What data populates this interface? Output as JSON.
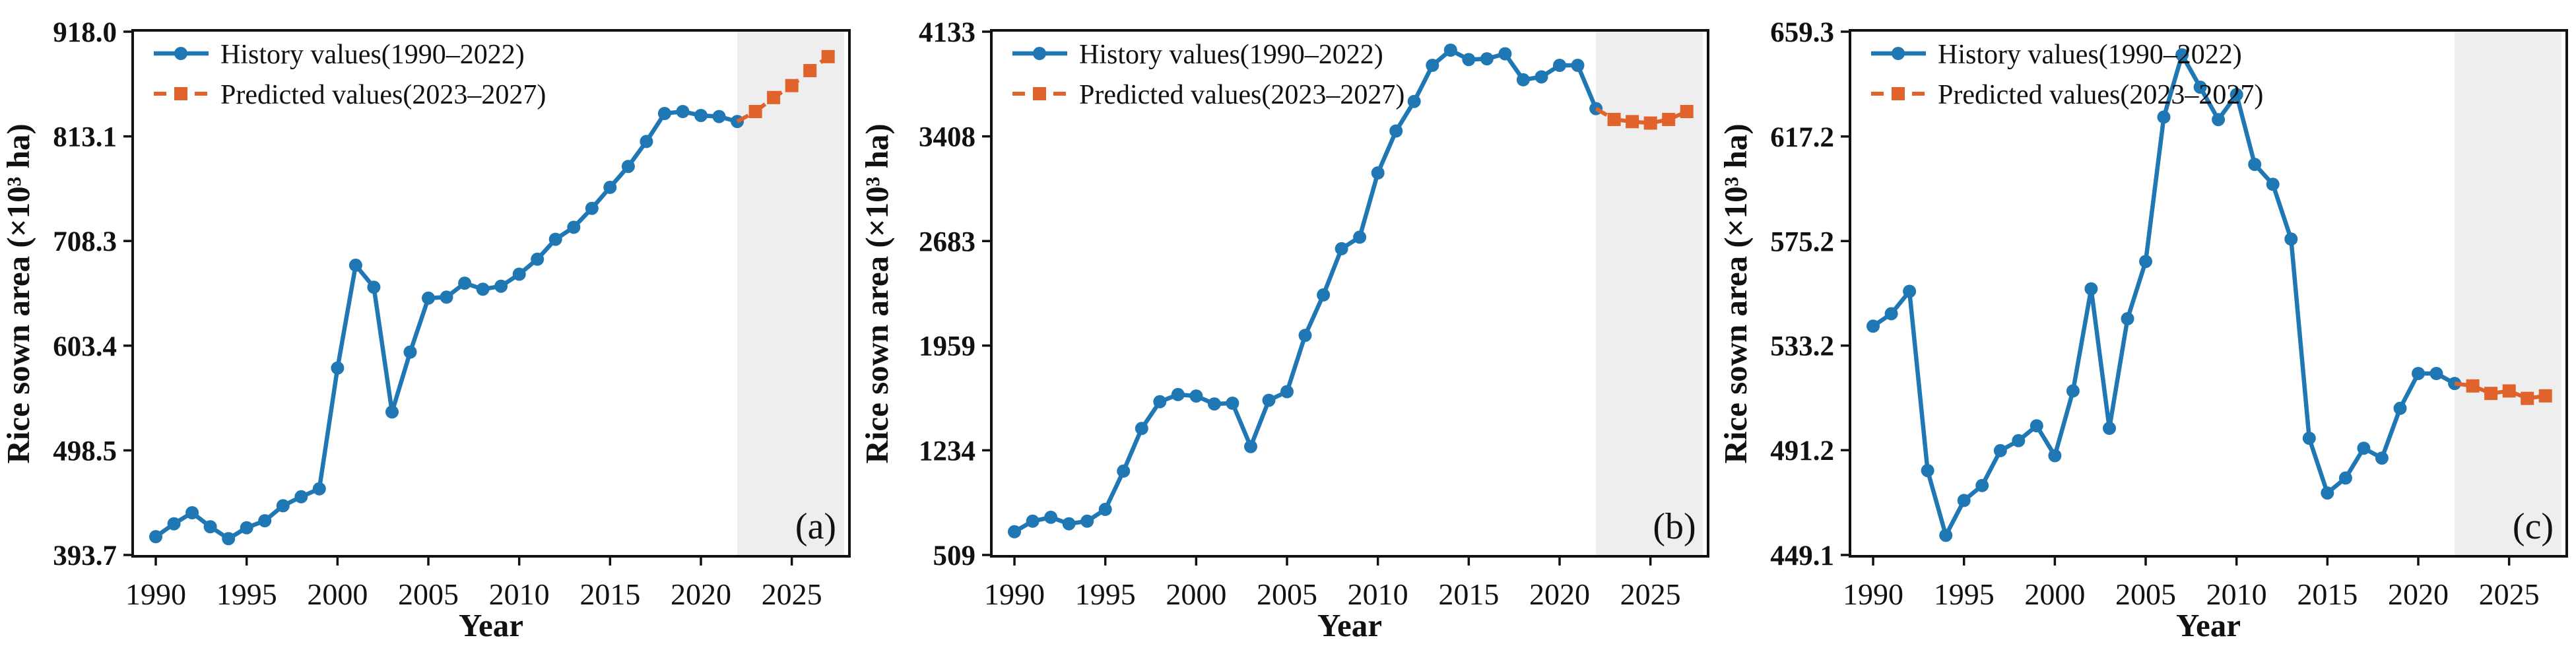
{
  "figure": {
    "ylabel": "Rice sown area (×10³ ha)",
    "xlabel": "Year",
    "legend_history": "History values(1990–2022)",
    "legend_predicted": "Predicted values(2023–2027)",
    "colors": {
      "history_blue": "#1f77b4",
      "predicted_orange": "#e0632b",
      "forecast_region_gray": "#eeeeee",
      "axis_black": "#111111"
    }
  },
  "chart_data": [
    {
      "type": "line",
      "panel_label": "(a)",
      "xlabel": "Year",
      "ylabel": "Rice sown area (×10³ ha)",
      "xlim": [
        1988.8,
        2028.1
      ],
      "ylim": [
        393.7,
        918.0
      ],
      "xticks": [
        1990,
        1995,
        2000,
        2005,
        2010,
        2015,
        2020,
        2025
      ],
      "xtick_labels": [
        "1990",
        "1995",
        "2000",
        "2005",
        "2010",
        "2015",
        "2020",
        "2025"
      ],
      "yticks": [
        393.7,
        498.5,
        603.4,
        708.3,
        813.1,
        918.0
      ],
      "ytick_labels": [
        "393.7",
        "498.5",
        "603.4",
        "708.3",
        "813.1",
        "918.0"
      ],
      "shaded_from": 2022,
      "legend_position": "upper-left",
      "grid": false,
      "series": [
        {
          "role": "history",
          "x_start": 1990,
          "values": [
            412,
            425,
            436,
            422,
            410,
            421,
            428,
            443,
            452,
            460,
            581,
            684,
            662,
            537,
            597,
            651,
            652,
            666,
            660,
            663,
            675,
            690,
            710,
            722,
            741,
            762,
            783,
            808,
            836,
            838,
            834,
            833,
            828
          ]
        },
        {
          "role": "predicted",
          "x_start": 2023,
          "values": [
            838,
            852,
            864,
            879,
            893
          ]
        }
      ]
    },
    {
      "type": "line",
      "panel_label": "(b)",
      "xlabel": "Year",
      "ylabel": "Rice sown area (×10³ ha)",
      "xlim": [
        1988.8,
        2028.1
      ],
      "ylim": [
        509,
        4133
      ],
      "xticks": [
        1990,
        1995,
        2000,
        2005,
        2010,
        2015,
        2020,
        2025
      ],
      "xtick_labels": [
        "1990",
        "1995",
        "2000",
        "2005",
        "2010",
        "2015",
        "2020",
        "2025"
      ],
      "yticks": [
        509,
        1234,
        1959,
        2683,
        3408,
        4133
      ],
      "ytick_labels": [
        "509",
        "1234",
        "1959",
        "2683",
        "3408",
        "4133"
      ],
      "shaded_from": 2022,
      "legend_position": "upper-left",
      "grid": false,
      "series": [
        {
          "role": "history",
          "x_start": 1990,
          "values": [
            670,
            743,
            770,
            725,
            743,
            825,
            1090,
            1385,
            1570,
            1620,
            1610,
            1555,
            1560,
            1260,
            1580,
            1640,
            2030,
            2310,
            2630,
            2710,
            3155,
            3445,
            3650,
            3900,
            4005,
            3940,
            3945,
            3980,
            3800,
            3820,
            3900,
            3900,
            3600
          ]
        },
        {
          "role": "predicted",
          "x_start": 2023,
          "values": [
            3525,
            3510,
            3500,
            3525,
            3580
          ]
        }
      ]
    },
    {
      "type": "line",
      "panel_label": "(c)",
      "xlabel": "Year",
      "ylabel": "Rice sown area (×10³ ha)",
      "xlim": [
        1988.8,
        2028.1
      ],
      "ylim": [
        449.1,
        659.3
      ],
      "xticks": [
        1990,
        1995,
        2000,
        2005,
        2010,
        2015,
        2020,
        2025
      ],
      "xtick_labels": [
        "1990",
        "1995",
        "2000",
        "2005",
        "2010",
        "2015",
        "2020",
        "2025"
      ],
      "yticks": [
        449.1,
        491.2,
        533.2,
        575.2,
        617.2,
        659.3
      ],
      "ytick_labels": [
        "449.1",
        "491.2",
        "533.2",
        "575.2",
        "617.2",
        "659.3"
      ],
      "shaded_from": 2022,
      "legend_position": "upper-left",
      "grid": false,
      "series": [
        {
          "role": "history",
          "x_start": 1990,
          "values": [
            541,
            546,
            555,
            483,
            457,
            471,
            477,
            491,
            495,
            501,
            489,
            515,
            556,
            500,
            544,
            567,
            625,
            650,
            637,
            624,
            634,
            606,
            598,
            576,
            496,
            474,
            480,
            492,
            488,
            508,
            522,
            522,
            518
          ]
        },
        {
          "role": "predicted",
          "x_start": 2023,
          "values": [
            517,
            514,
            515,
            512,
            513
          ]
        }
      ]
    }
  ]
}
